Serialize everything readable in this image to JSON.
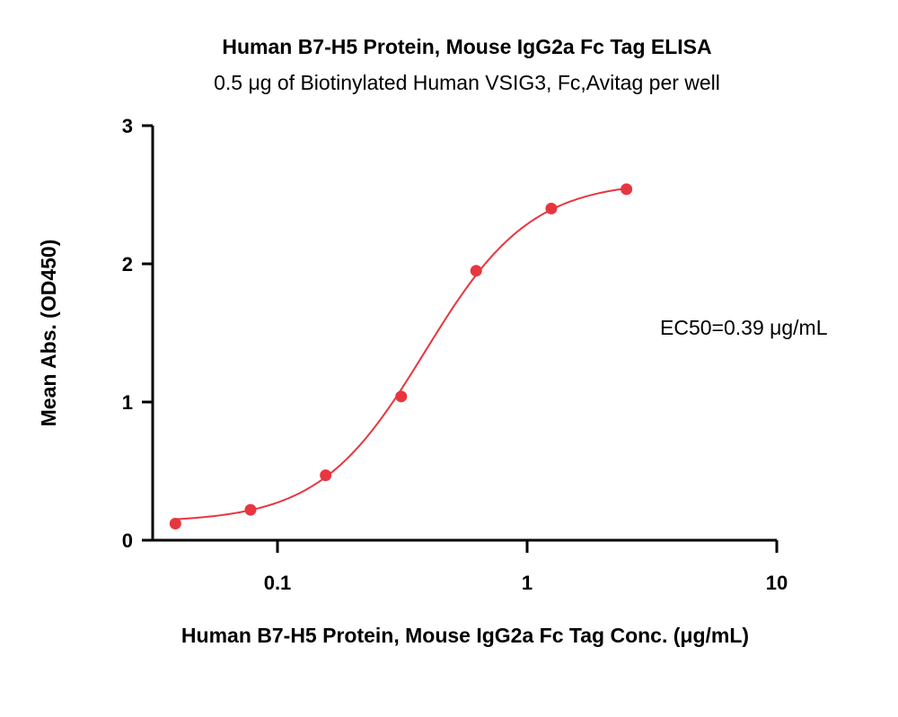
{
  "chart_data": {
    "type": "scatter",
    "title": "Human B7-H5 Protein, Mouse IgG2a Fc Tag ELISA",
    "subtitle": "0.5 μg of Biotinylated Human VSIG3, Fc,Avitag per well",
    "xlabel": "Human B7-H5 Protein, Mouse IgG2a Fc Tag Conc. (μg/mL)",
    "ylabel": "Mean Abs. (OD450)",
    "x_scale": "log",
    "xlim": [
      0.04,
      10
    ],
    "ylim": [
      0,
      3
    ],
    "x_ticks": [
      0.1,
      1,
      10
    ],
    "x_tick_labels": [
      "0.1",
      "1",
      "10"
    ],
    "y_ticks": [
      0,
      1,
      2,
      3
    ],
    "y_tick_labels": [
      "0",
      "1",
      "2",
      "3"
    ],
    "grid": false,
    "series": [
      {
        "x": [
          0.039,
          0.078,
          0.156,
          0.313,
          0.625,
          1.25,
          2.5
        ],
        "y": [
          0.12,
          0.22,
          0.47,
          1.04,
          1.95,
          2.4,
          2.54
        ],
        "color": "#e8363f",
        "fit": "4PL"
      }
    ],
    "fit_params": {
      "bottom": 0.13,
      "top": 2.6,
      "ec50": 0.39,
      "hill": 2.05
    },
    "annotation": "EC50=0.39 μg/mL"
  }
}
